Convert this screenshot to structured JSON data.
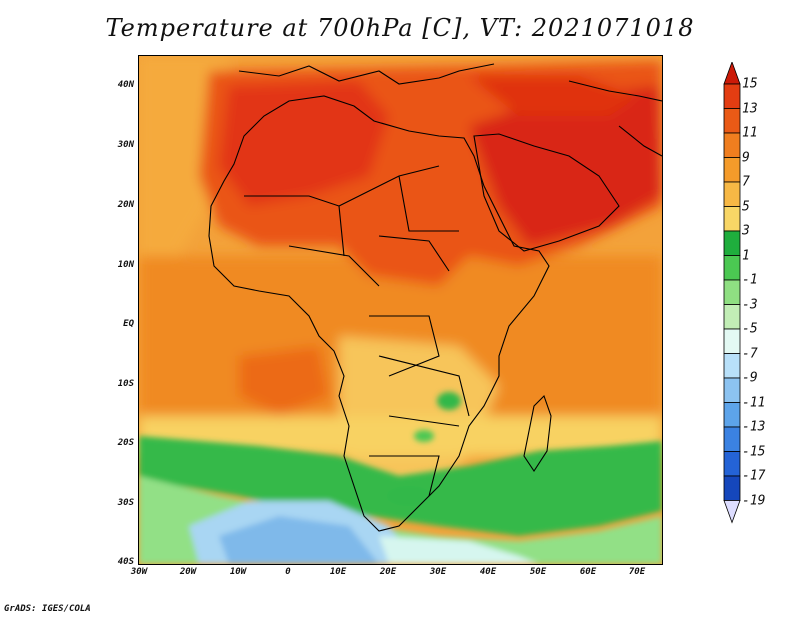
{
  "title": "Temperature at 700hPa [C], VT: 2021071018",
  "credit": "GrADS: IGES/COLA",
  "map": {
    "region": "Africa and Arabian Peninsula",
    "lon_range": [
      -30,
      75
    ],
    "lat_range": [
      -40,
      45
    ],
    "lat_labels": [
      "40N",
      "30N",
      "20N",
      "10N",
      "EQ",
      "10S",
      "20S",
      "30S",
      "40S"
    ],
    "lon_labels": [
      "30W",
      "20W",
      "10W",
      "0",
      "10E",
      "20E",
      "30E",
      "40E",
      "50E",
      "60E",
      "70E"
    ]
  },
  "colorbar": {
    "labels": [
      "15",
      "13",
      "11",
      "9",
      "7",
      "5",
      "3",
      "1",
      "-1",
      "-3",
      "-5",
      "-7",
      "-9",
      "-11",
      "-13",
      "-15",
      "-17",
      "-19"
    ],
    "colors": [
      "#e0230f",
      "#e33d12",
      "#ea5a16",
      "#f07e1f",
      "#f59b2a",
      "#f7b845",
      "#f8d666",
      "#1fae3d",
      "#4bc852",
      "#8fdf82",
      "#c2eeb6",
      "#e3f9f3",
      "#b8e0f9",
      "#8cc3f1",
      "#5da4ea",
      "#3b82e2",
      "#2463d6",
      "#1547bc",
      "#0a1d7a"
    ],
    "top_triangle_color": "#cc1a08",
    "bottom_triangle_color": "#ddddff"
  }
}
